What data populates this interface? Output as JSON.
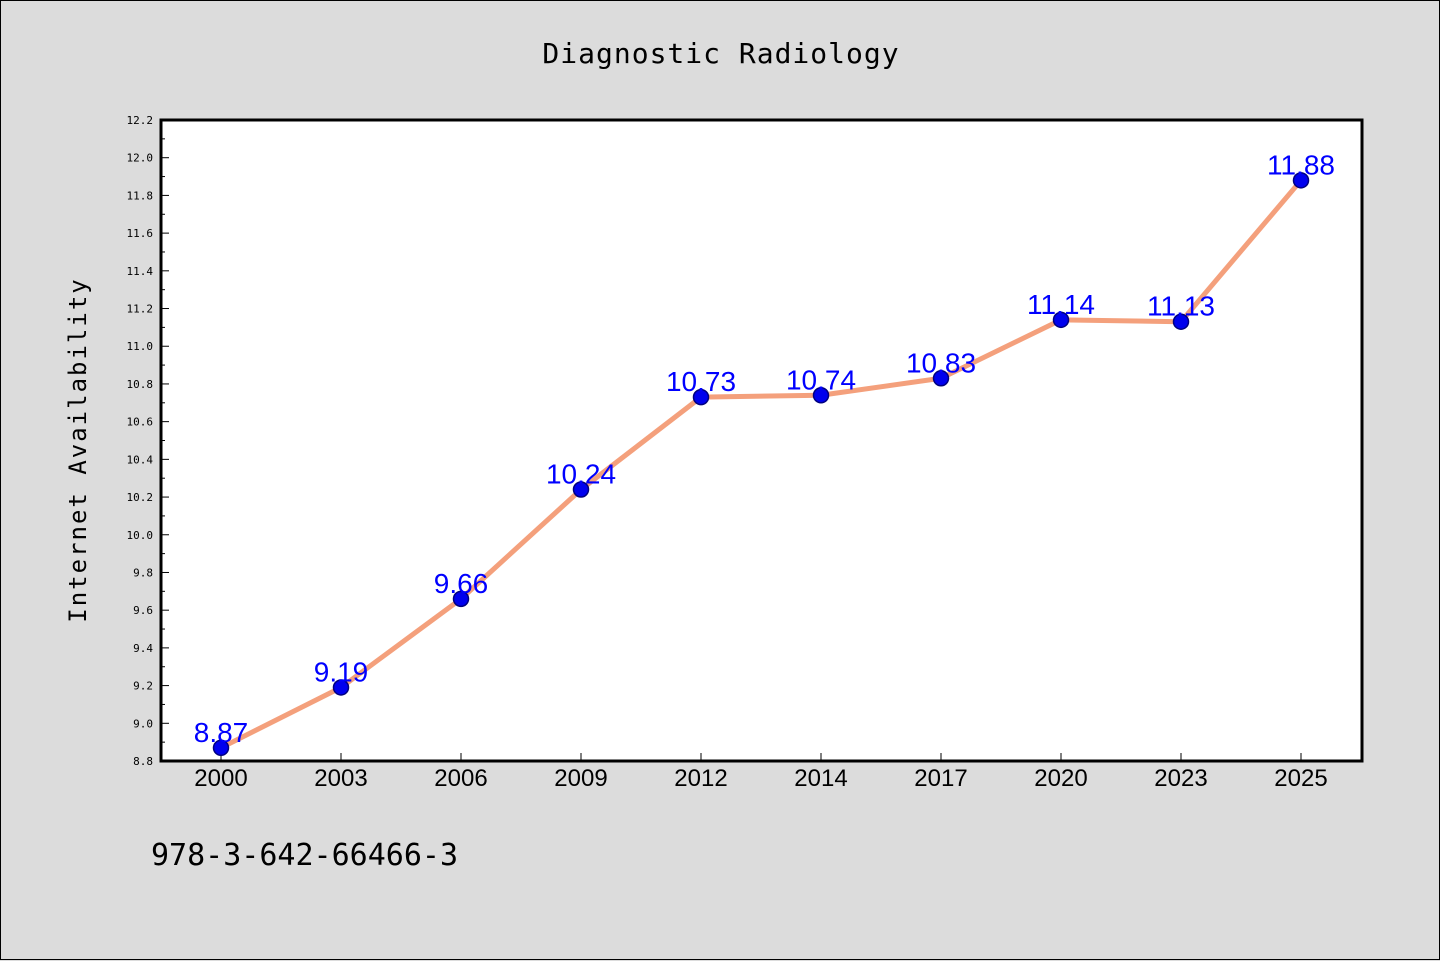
{
  "footer_text": "978-3-642-66466-3",
  "chart_data": {
    "type": "line",
    "title": "Diagnostic Radiology",
    "xlabel": "",
    "ylabel": "Internet Availability",
    "categories": [
      "2000",
      "2003",
      "2006",
      "2009",
      "2012",
      "2014",
      "2017",
      "2020",
      "2023",
      "2025"
    ],
    "series": [
      {
        "values": [
          8.87,
          9.19,
          9.66,
          10.24,
          10.73,
          10.74,
          10.83,
          11.14,
          11.13,
          11.88
        ]
      }
    ],
    "data_labels": [
      "8.87",
      "9.19",
      "9.66",
      "10.24",
      "10.73",
      "10.74",
      "10.83",
      "11.14",
      "11.13",
      "11.88"
    ],
    "ylim": [
      8.8,
      12.2
    ],
    "yticks": [
      "8.8",
      "9.0",
      "9.2",
      "9.4",
      "9.6",
      "9.8",
      "10.0",
      "10.2",
      "10.4",
      "10.6",
      "10.8",
      "11.0",
      "11.2",
      "11.4",
      "11.6",
      "11.8",
      "12.0",
      "12.2"
    ],
    "grid": false,
    "legend": "none",
    "colors": {
      "line": "#f4a07c",
      "marker_fill": "#0000ee",
      "marker_edge": "#000080",
      "data_label": "#0000ff",
      "plot_background": "#ffffff",
      "figure_background": "#dcdcdc"
    }
  }
}
